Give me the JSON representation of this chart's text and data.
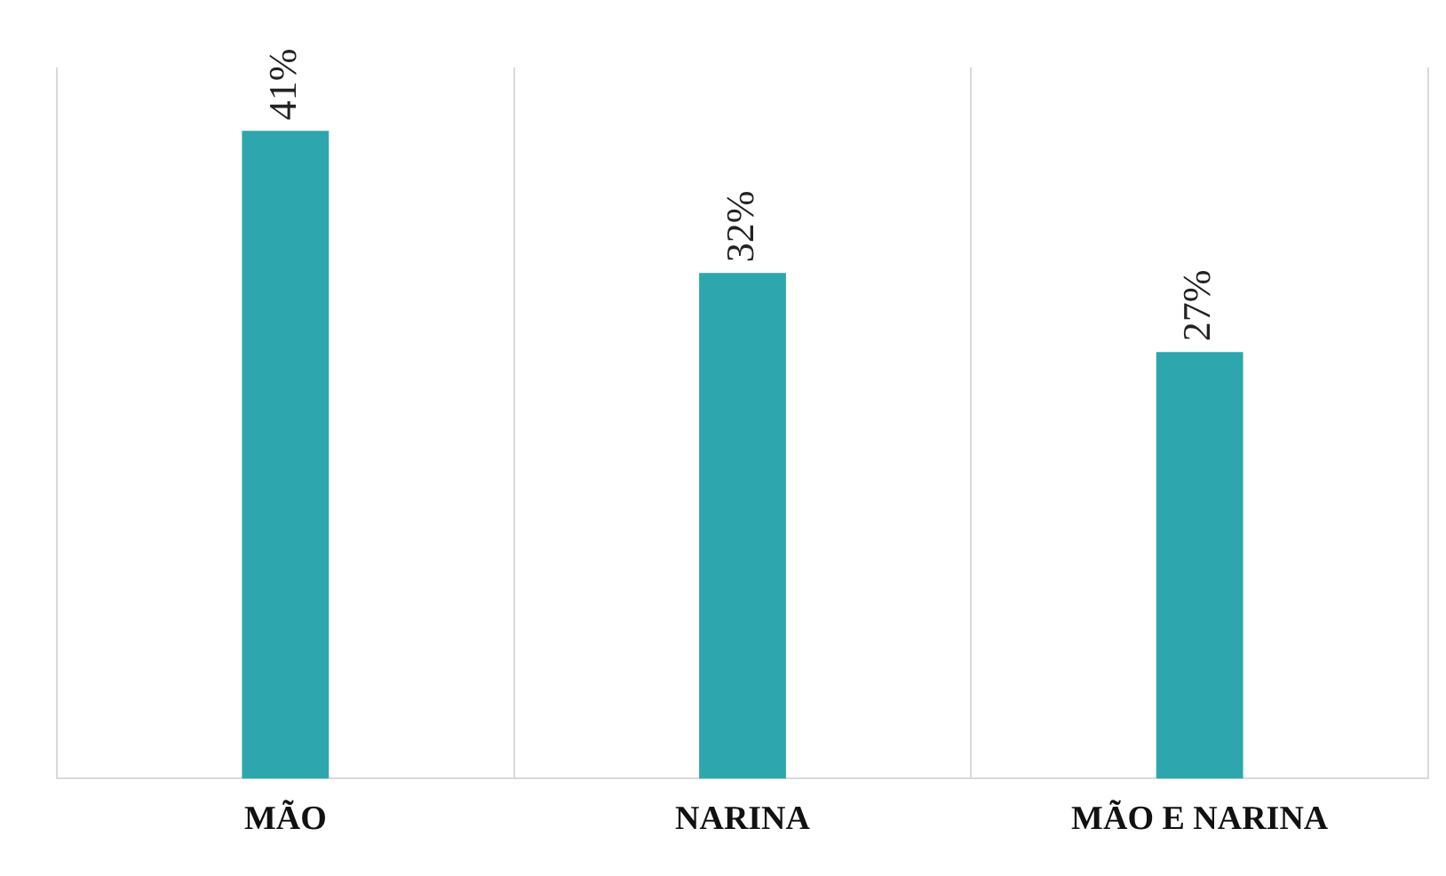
{
  "chart_data": {
    "type": "bar",
    "categories": [
      "MÃO",
      "NARINA",
      "MÃO E NARINA"
    ],
    "values": [
      41,
      32,
      27
    ],
    "color": "#2ea6ae",
    "value_labels": [
      "41%",
      "32%",
      "27%"
    ],
    "grid": "x"
  }
}
